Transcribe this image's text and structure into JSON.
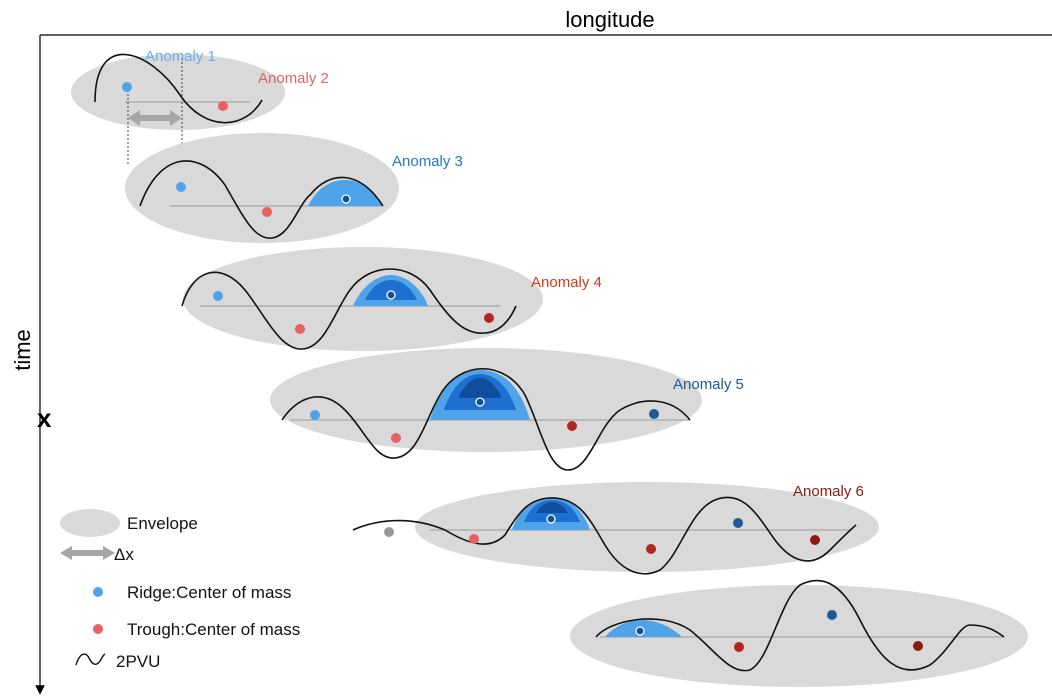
{
  "axes": {
    "x_label": "longitude",
    "y_label": "time",
    "marker": "x"
  },
  "anomalies": [
    {
      "label": "Anomaly 1",
      "color": "#6aaee8"
    },
    {
      "label": "Anomaly 2",
      "color": "#e06464"
    },
    {
      "label": "Anomaly 3",
      "color": "#1f78c8"
    },
    {
      "label": "Anomaly 4",
      "color": "#d23a1f"
    },
    {
      "label": "Anomaly 5",
      "color": "#1d5a94"
    },
    {
      "label": "Anomaly 6",
      "color": "#8b1a10"
    }
  ],
  "legend": {
    "envelope": "Envelope",
    "dx": "Δx",
    "ridge": "Ridge:Center of mass",
    "trough": "Trough:Center of mass",
    "pvu": "2PVU"
  },
  "colors": {
    "envelope": "#d9d9d9",
    "arrow": "#a6a6a6",
    "ridge_light": "#4fa3e8",
    "ridge_mid": "#1f6fd0",
    "ridge_dark": "#0d4f9e",
    "trough_light": "#e86060",
    "trough_dark": "#b3261e",
    "neutral": "#9a9a9a",
    "baseline": "#9a9a9a"
  }
}
